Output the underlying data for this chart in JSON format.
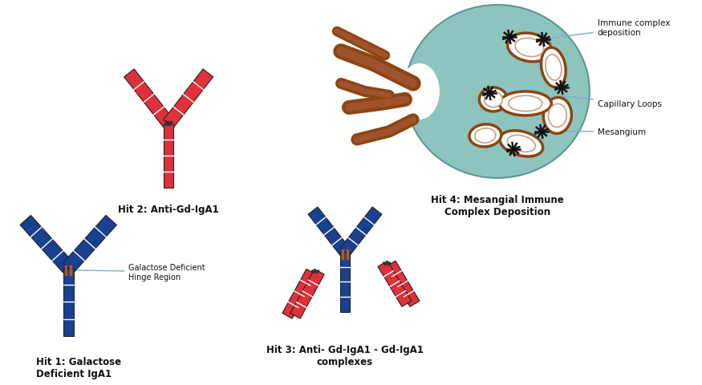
{
  "hit1_label": "Hit 1: Galactose\nDeficient IgA1",
  "hit2_label": "Hit 2: Anti-Gd-IgA1",
  "hit3_label": "Hit 3: Anti- Gd-IgA1 - Gd-IgA1\ncomplexes",
  "hit4_label": "Hit 4: Mesangial Immune\nComplex Deposition",
  "label_immune": "Immune complex\ndeposition",
  "label_capillary": "Capillary Loops",
  "label_mesangium": "Mesangium",
  "label_galactose": "Galactose Deficient\nHinge Region",
  "bg_color": "#ffffff",
  "antibody_red": "#e0303a",
  "antibody_red2": "#cc2233",
  "antibody_blue": "#1a4090",
  "antibody_stripe": "#ffffff",
  "kidney_fill": "#8ec4be",
  "vessel_color": "#8b4513",
  "vessel_light": "#a0522d",
  "annotation_line_color": "#7ab0cc",
  "text_color": "#111111",
  "hinge_color": "#b05820"
}
